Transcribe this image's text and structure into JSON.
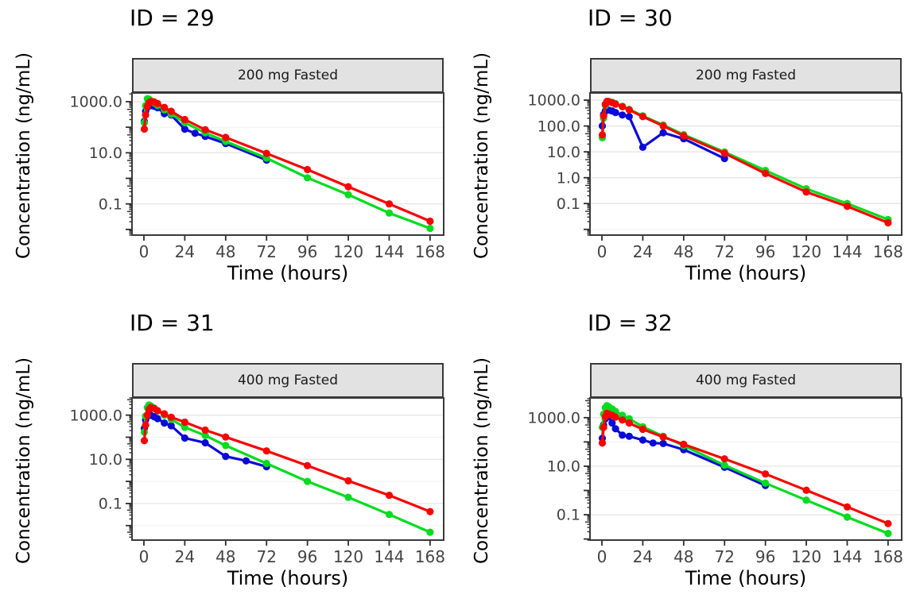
{
  "figure": {
    "background": "#ffffff",
    "grid": {
      "major_color": "#e6e6e6",
      "minor_color": "#f2f2f2",
      "panel_border_color": "#3a3a3a",
      "strip_background": "#e2e2e2"
    },
    "axis": {
      "tick_color": "#2e2e2e",
      "tick_label_color": "#444444"
    },
    "series_colors": {
      "red": "#fa0000",
      "green": "#00dc1e",
      "blue": "#0a0ad7"
    },
    "legend": "none"
  },
  "chart_data": [
    {
      "type": "line",
      "title": "ID = 29",
      "strip_label": "200 mg Fasted",
      "xlabel": "Time (hours)",
      "ylabel": "Concentration (ng/mL)",
      "yscale": "log",
      "xlim": [
        -7,
        176
      ],
      "ylim": [
        0.006,
        2200
      ],
      "x_ticks": [
        0,
        24,
        48,
        72,
        96,
        120,
        144,
        168
      ],
      "y_ticks": [
        {
          "value": 1000,
          "label": "1000.0"
        },
        {
          "value": 10,
          "label": "10.0"
        },
        {
          "value": 0.1,
          "label": "0.1"
        }
      ],
      "series": [
        {
          "name": "blue-observed",
          "color": "#0a0ad7",
          "x": [
            0.25,
            1,
            2,
            3,
            4,
            6,
            8,
            12,
            16,
            24,
            30,
            36,
            48,
            72
          ],
          "y": [
            170,
            420,
            600,
            680,
            700,
            660,
            580,
            340,
            300,
            84,
            58,
            44,
            23,
            5.2
          ]
        },
        {
          "name": "green-prediction",
          "color": "#00dc1e",
          "x": [
            0.25,
            1,
            2,
            3,
            4,
            6,
            8,
            12,
            16,
            24,
            36,
            48,
            72,
            96,
            120,
            144,
            168
          ],
          "y": [
            150,
            700,
            1300,
            1250,
            1100,
            900,
            720,
            480,
            330,
            150,
            60,
            28,
            6.2,
            1.05,
            0.23,
            0.044,
            0.011
          ]
        },
        {
          "name": "red-prediction",
          "color": "#fa0000",
          "x": [
            0.25,
            1,
            2,
            3,
            4,
            6,
            8,
            12,
            16,
            24,
            36,
            48,
            72,
            96,
            120,
            144,
            168
          ],
          "y": [
            85,
            300,
            650,
            900,
            1000,
            980,
            850,
            600,
            420,
            200,
            80,
            40,
            9.5,
            2.2,
            0.47,
            0.1,
            0.021
          ]
        }
      ]
    },
    {
      "type": "line",
      "title": "ID = 30",
      "strip_label": "200 mg Fasted",
      "xlabel": "Time (hours)",
      "ylabel": "Concentration (ng/mL)",
      "yscale": "log",
      "xlim": [
        -7,
        176
      ],
      "ylim": [
        0.006,
        1900
      ],
      "x_ticks": [
        0,
        24,
        48,
        72,
        96,
        120,
        144,
        168
      ],
      "y_ticks": [
        {
          "value": 1000,
          "label": "1000.0"
        },
        {
          "value": 100,
          "label": "100.0"
        },
        {
          "value": 10,
          "label": "10.0"
        },
        {
          "value": 1,
          "label": "1.0"
        },
        {
          "value": 0.1,
          "label": "0.1"
        }
      ],
      "series": [
        {
          "name": "blue-observed",
          "color": "#0a0ad7",
          "x": [
            0.25,
            1,
            2,
            3,
            4,
            6,
            8,
            12,
            16,
            24,
            36,
            48,
            72
          ],
          "y": [
            100,
            280,
            380,
            420,
            410,
            380,
            330,
            265,
            230,
            15,
            55,
            32,
            5.5
          ]
        },
        {
          "name": "green-prediction",
          "color": "#00dc1e",
          "x": [
            0.25,
            1,
            2,
            3,
            4,
            6,
            8,
            12,
            16,
            24,
            36,
            48,
            72,
            96,
            120,
            144,
            168
          ],
          "y": [
            35,
            200,
            620,
            860,
            880,
            820,
            730,
            580,
            440,
            245,
            108,
            46,
            9.8,
            1.9,
            0.37,
            0.1,
            0.024
          ]
        },
        {
          "name": "red-prediction",
          "color": "#fa0000",
          "x": [
            0.25,
            1,
            2,
            3,
            4,
            6,
            8,
            12,
            16,
            24,
            36,
            48,
            72,
            96,
            120,
            144,
            168
          ],
          "y": [
            45,
            250,
            700,
            900,
            880,
            800,
            700,
            560,
            420,
            230,
            100,
            42,
            8.8,
            1.45,
            0.28,
            0.078,
            0.018
          ]
        }
      ]
    },
    {
      "type": "line",
      "title": "ID = 31",
      "strip_label": "400 mg Fasted",
      "xlabel": "Time (hours)",
      "ylabel": "Concentration (ng/mL)",
      "yscale": "log",
      "xlim": [
        -7,
        176
      ],
      "ylim": [
        0.0022,
        6000
      ],
      "x_ticks": [
        0,
        24,
        48,
        72,
        96,
        120,
        144,
        168
      ],
      "y_ticks": [
        {
          "value": 1000,
          "label": "1000.0"
        },
        {
          "value": 10,
          "label": "10.0"
        },
        {
          "value": 0.1,
          "label": "0.1"
        }
      ],
      "series": [
        {
          "name": "blue-observed",
          "color": "#0a0ad7",
          "x": [
            0.25,
            1,
            2,
            3,
            4,
            6,
            8,
            12,
            16,
            24,
            36,
            48,
            60,
            72
          ],
          "y": [
            250,
            600,
            900,
            1050,
            980,
            850,
            700,
            440,
            330,
            92,
            56,
            13.5,
            8.5,
            4.6
          ]
        },
        {
          "name": "green-prediction",
          "color": "#00dc1e",
          "x": [
            0.25,
            1,
            2,
            3,
            4,
            6,
            8,
            12,
            16,
            24,
            36,
            48,
            72,
            96,
            120,
            144,
            168
          ],
          "y": [
            170,
            900,
            2200,
            2900,
            2600,
            2100,
            1550,
            1000,
            640,
            280,
            120,
            42,
            6.5,
            1.0,
            0.19,
            0.032,
            0.005
          ]
        },
        {
          "name": "red-prediction",
          "color": "#fa0000",
          "x": [
            0.25,
            1,
            2,
            3,
            4,
            6,
            8,
            12,
            16,
            24,
            36,
            48,
            72,
            96,
            120,
            144,
            168
          ],
          "y": [
            70,
            350,
            1000,
            1800,
            2200,
            2000,
            1600,
            1150,
            800,
            480,
            210,
            102,
            24,
            5.2,
            1.06,
            0.235,
            0.043
          ]
        }
      ]
    },
    {
      "type": "line",
      "title": "ID = 32",
      "strip_label": "400 mg Fasted",
      "xlabel": "Time (hours)",
      "ylabel": "Concentration (ng/mL)",
      "yscale": "log",
      "xlim": [
        -7,
        176
      ],
      "ylim": [
        0.009,
        6500
      ],
      "x_ticks": [
        0,
        24,
        48,
        72,
        96,
        120,
        144,
        168
      ],
      "y_ticks": [
        {
          "value": 1000,
          "label": "1000.0"
        },
        {
          "value": 10,
          "label": "10.0"
        },
        {
          "value": 0.1,
          "label": "0.1"
        }
      ],
      "series": [
        {
          "name": "blue-observed",
          "color": "#0a0ad7",
          "x": [
            0.25,
            1,
            2,
            3,
            4,
            6,
            8,
            12,
            16,
            24,
            30,
            36,
            48,
            72,
            96
          ],
          "y": [
            140,
            500,
            900,
            1200,
            1100,
            600,
            350,
            190,
            170,
            120,
            90,
            86,
            48,
            9,
            1.6
          ]
        },
        {
          "name": "green-prediction",
          "color": "#00dc1e",
          "x": [
            0.25,
            1,
            2,
            3,
            4,
            6,
            8,
            12,
            16,
            24,
            36,
            48,
            72,
            96,
            120,
            144,
            168
          ],
          "y": [
            400,
            1400,
            2600,
            3100,
            2800,
            2300,
            1800,
            1250,
            900,
            420,
            170,
            70,
            11,
            2.0,
            0.4,
            0.08,
            0.017
          ]
        },
        {
          "name": "red-prediction",
          "color": "#fa0000",
          "x": [
            0.25,
            1,
            2,
            3,
            4,
            6,
            8,
            12,
            16,
            24,
            36,
            48,
            72,
            96,
            120,
            144,
            168
          ],
          "y": [
            90,
            400,
            1100,
            1500,
            1400,
            1250,
            1050,
            800,
            600,
            330,
            160,
            80,
            20,
            4.8,
            1.02,
            0.21,
            0.043
          ]
        }
      ]
    }
  ]
}
